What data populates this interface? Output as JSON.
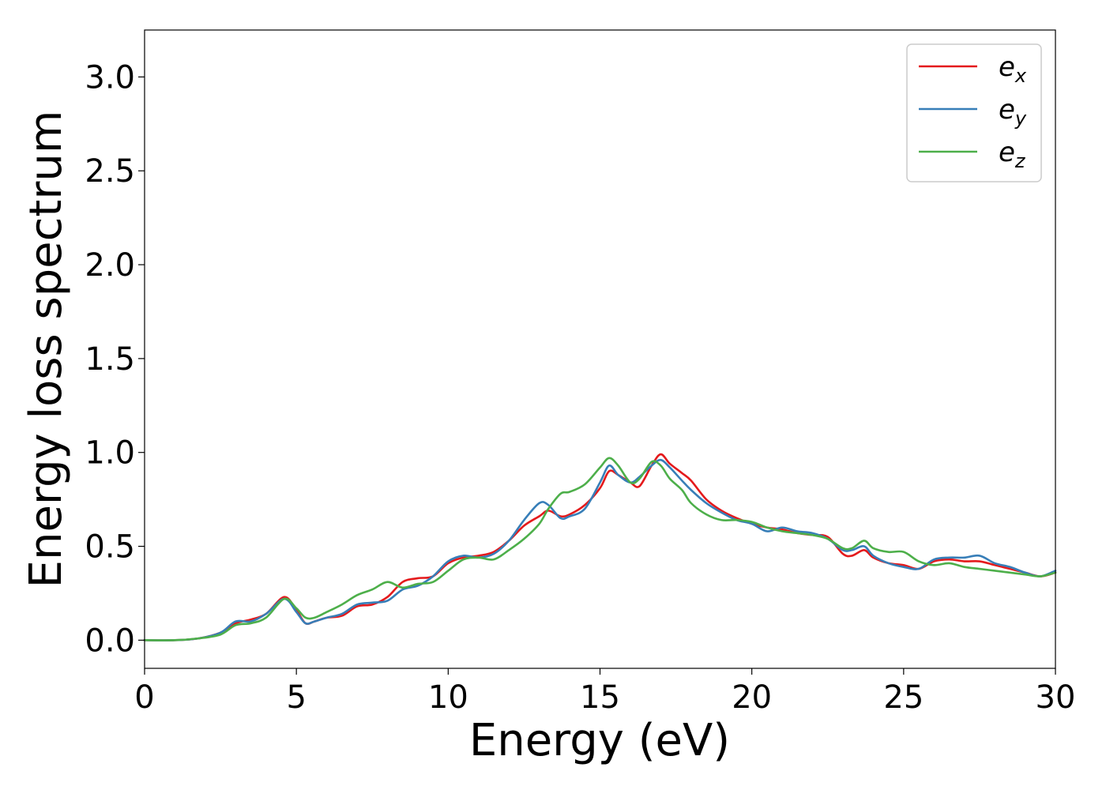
{
  "chart_data": {
    "type": "line",
    "title": "",
    "xlabel": "Energy (eV)",
    "ylabel": "Energy loss spectrum",
    "xlim": [
      0,
      30
    ],
    "ylim": [
      -0.15,
      3.25
    ],
    "xticks": [
      0,
      5,
      10,
      15,
      20,
      25,
      30
    ],
    "xtick_labels": [
      "0",
      "5",
      "10",
      "15",
      "20",
      "25",
      "30"
    ],
    "yticks": [
      0.0,
      0.5,
      1.0,
      1.5,
      2.0,
      2.5,
      3.0
    ],
    "ytick_labels": [
      "0.0",
      "0.5",
      "1.0",
      "1.5",
      "2.0",
      "2.5",
      "3.0"
    ],
    "grid": false,
    "legend_position": "top-right",
    "series": [
      {
        "name": "e",
        "subscript": "x",
        "color": "#e41a1c",
        "x": [
          0,
          1,
          1.8,
          2.5,
          3.0,
          3.5,
          4.0,
          4.6,
          5.0,
          5.3,
          5.6,
          6.0,
          6.5,
          7.0,
          7.5,
          8.0,
          8.5,
          9.0,
          9.5,
          10.0,
          10.5,
          11.0,
          11.5,
          12.0,
          12.5,
          13.0,
          13.3,
          13.7,
          14.0,
          14.5,
          15.0,
          15.3,
          15.6,
          16.0,
          16.3,
          16.7,
          17.0,
          17.3,
          17.7,
          18.0,
          18.5,
          19.0,
          19.5,
          20.0,
          20.5,
          21.0,
          21.5,
          22.0,
          22.5,
          23.0,
          23.3,
          23.7,
          24.0,
          24.5,
          25.0,
          25.5,
          26.0,
          26.5,
          27.0,
          27.5,
          28.0,
          28.5,
          29.0,
          29.5,
          30.0
        ],
        "y": [
          0.0,
          0.0,
          0.01,
          0.04,
          0.09,
          0.11,
          0.14,
          0.23,
          0.16,
          0.09,
          0.1,
          0.12,
          0.13,
          0.18,
          0.19,
          0.23,
          0.31,
          0.33,
          0.34,
          0.41,
          0.44,
          0.45,
          0.47,
          0.53,
          0.61,
          0.66,
          0.69,
          0.66,
          0.67,
          0.72,
          0.81,
          0.9,
          0.88,
          0.84,
          0.82,
          0.93,
          0.99,
          0.94,
          0.89,
          0.85,
          0.75,
          0.69,
          0.65,
          0.62,
          0.6,
          0.59,
          0.57,
          0.56,
          0.55,
          0.46,
          0.45,
          0.48,
          0.44,
          0.41,
          0.4,
          0.38,
          0.42,
          0.43,
          0.42,
          0.42,
          0.4,
          0.38,
          0.36,
          0.34,
          0.36
        ]
      },
      {
        "name": "e",
        "subscript": "y",
        "color": "#377eb8",
        "x": [
          0,
          1,
          1.8,
          2.5,
          3.0,
          3.5,
          4.0,
          4.6,
          5.0,
          5.3,
          5.6,
          6.0,
          6.5,
          7.0,
          7.5,
          8.0,
          8.5,
          9.0,
          9.5,
          10.0,
          10.5,
          11.0,
          11.5,
          12.0,
          12.5,
          13.0,
          13.3,
          13.7,
          14.0,
          14.5,
          15.0,
          15.3,
          15.6,
          16.0,
          16.3,
          16.7,
          17.0,
          17.3,
          17.7,
          18.0,
          18.5,
          19.0,
          19.5,
          20.0,
          20.5,
          21.0,
          21.5,
          22.0,
          22.5,
          23.0,
          23.3,
          23.7,
          24.0,
          24.5,
          25.0,
          25.5,
          26.0,
          26.5,
          27.0,
          27.5,
          28.0,
          28.5,
          29.0,
          29.5,
          30.0
        ],
        "y": [
          0.0,
          0.0,
          0.01,
          0.04,
          0.1,
          0.1,
          0.14,
          0.22,
          0.15,
          0.09,
          0.1,
          0.12,
          0.14,
          0.19,
          0.2,
          0.21,
          0.27,
          0.29,
          0.34,
          0.42,
          0.45,
          0.44,
          0.46,
          0.53,
          0.64,
          0.73,
          0.72,
          0.65,
          0.66,
          0.7,
          0.84,
          0.93,
          0.88,
          0.84,
          0.87,
          0.93,
          0.96,
          0.92,
          0.85,
          0.8,
          0.73,
          0.68,
          0.64,
          0.62,
          0.58,
          0.6,
          0.58,
          0.57,
          0.54,
          0.48,
          0.48,
          0.5,
          0.45,
          0.41,
          0.39,
          0.38,
          0.43,
          0.44,
          0.44,
          0.45,
          0.41,
          0.39,
          0.36,
          0.34,
          0.37
        ]
      },
      {
        "name": "e",
        "subscript": "z",
        "color": "#4daf4a",
        "x": [
          0,
          1,
          1.8,
          2.5,
          3.0,
          3.5,
          4.0,
          4.6,
          5.0,
          5.3,
          5.6,
          6.0,
          6.5,
          7.0,
          7.5,
          8.0,
          8.5,
          9.0,
          9.5,
          10.0,
          10.5,
          11.0,
          11.5,
          12.0,
          12.5,
          13.0,
          13.3,
          13.7,
          14.0,
          14.5,
          15.0,
          15.3,
          15.6,
          16.0,
          16.3,
          16.7,
          17.0,
          17.3,
          17.7,
          18.0,
          18.5,
          19.0,
          19.5,
          20.0,
          20.5,
          21.0,
          21.5,
          22.0,
          22.5,
          23.0,
          23.3,
          23.7,
          24.0,
          24.5,
          25.0,
          25.5,
          26.0,
          26.5,
          27.0,
          27.5,
          28.0,
          28.5,
          29.0,
          29.5,
          30.0
        ],
        "y": [
          0.0,
          0.0,
          0.01,
          0.03,
          0.08,
          0.09,
          0.12,
          0.22,
          0.17,
          0.12,
          0.12,
          0.15,
          0.19,
          0.24,
          0.27,
          0.31,
          0.28,
          0.3,
          0.31,
          0.37,
          0.43,
          0.44,
          0.43,
          0.48,
          0.54,
          0.62,
          0.7,
          0.78,
          0.79,
          0.83,
          0.92,
          0.97,
          0.93,
          0.84,
          0.86,
          0.95,
          0.93,
          0.86,
          0.8,
          0.73,
          0.67,
          0.64,
          0.64,
          0.63,
          0.6,
          0.58,
          0.57,
          0.56,
          0.54,
          0.49,
          0.49,
          0.53,
          0.49,
          0.47,
          0.47,
          0.42,
          0.4,
          0.41,
          0.39,
          0.38,
          0.37,
          0.36,
          0.35,
          0.34,
          0.36
        ]
      }
    ]
  }
}
